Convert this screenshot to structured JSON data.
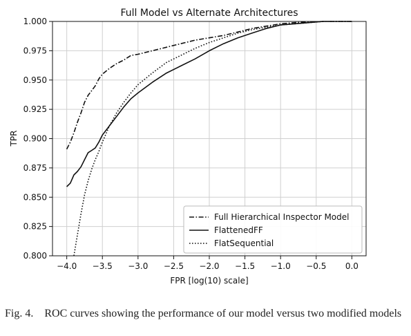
{
  "chart_data": {
    "type": "line",
    "title": "Full Model vs Alternate Architectures",
    "xlabel": "FPR [log(10) scale]",
    "ylabel": "TPR",
    "xlim": [
      -4.2,
      0.2
    ],
    "ylim": [
      0.8,
      1.0
    ],
    "x_ticks": [
      -4.0,
      -3.5,
      -3.0,
      -2.5,
      -2.0,
      -1.5,
      -1.0,
      -0.5,
      0.0
    ],
    "x_tick_labels": [
      "−4.0",
      "−3.5",
      "−3.0",
      "−2.5",
      "−2.0",
      "−1.5",
      "−1.0",
      "−0.5",
      "0.0"
    ],
    "y_ticks": [
      0.8,
      0.825,
      0.85,
      0.875,
      0.9,
      0.925,
      0.95,
      0.975,
      1.0
    ],
    "y_tick_labels": [
      "0.800",
      "0.825",
      "0.850",
      "0.875",
      "0.900",
      "0.925",
      "0.950",
      "0.975",
      "1.000"
    ],
    "grid": true,
    "legend_position": "lower-right",
    "series": [
      {
        "name": "Full Hierarchical Inspector Model",
        "style": "dashdot",
        "x": [
          -4.0,
          -3.95,
          -3.9,
          -3.85,
          -3.8,
          -3.75,
          -3.7,
          -3.65,
          -3.6,
          -3.55,
          -3.5,
          -3.4,
          -3.3,
          -3.2,
          -3.1,
          -3.0,
          -2.8,
          -2.6,
          -2.4,
          -2.2,
          -2.0,
          -1.8,
          -1.6,
          -1.4,
          -1.2,
          -1.0,
          -0.8,
          -0.6,
          -0.4,
          -0.2,
          0.0
        ],
        "y": [
          0.891,
          0.897,
          0.905,
          0.914,
          0.922,
          0.931,
          0.937,
          0.941,
          0.945,
          0.951,
          0.955,
          0.96,
          0.964,
          0.967,
          0.971,
          0.972,
          0.975,
          0.978,
          0.981,
          0.984,
          0.986,
          0.988,
          0.991,
          0.994,
          0.996,
          0.998,
          0.999,
          0.9995,
          1.0,
          1.0,
          1.0
        ]
      },
      {
        "name": "FlattenedFF",
        "style": "solid",
        "x": [
          -4.0,
          -3.95,
          -3.9,
          -3.85,
          -3.8,
          -3.75,
          -3.7,
          -3.65,
          -3.6,
          -3.55,
          -3.5,
          -3.4,
          -3.3,
          -3.2,
          -3.1,
          -3.0,
          -2.8,
          -2.6,
          -2.4,
          -2.2,
          -2.0,
          -1.8,
          -1.6,
          -1.4,
          -1.2,
          -1.0,
          -0.8,
          -0.6,
          -0.4,
          -0.2,
          0.0
        ],
        "y": [
          0.859,
          0.862,
          0.869,
          0.872,
          0.876,
          0.882,
          0.888,
          0.89,
          0.892,
          0.897,
          0.903,
          0.911,
          0.919,
          0.927,
          0.934,
          0.939,
          0.948,
          0.956,
          0.962,
          0.968,
          0.975,
          0.981,
          0.986,
          0.99,
          0.994,
          0.997,
          0.998,
          0.999,
          1.0,
          1.0,
          1.0
        ]
      },
      {
        "name": "FlatSequential",
        "style": "dotted",
        "x": [
          -3.9,
          -3.85,
          -3.8,
          -3.75,
          -3.7,
          -3.65,
          -3.6,
          -3.55,
          -3.5,
          -3.4,
          -3.3,
          -3.2,
          -3.1,
          -3.0,
          -2.8,
          -2.6,
          -2.4,
          -2.2,
          -2.0,
          -1.8,
          -1.6,
          -1.4,
          -1.2,
          -1.0,
          -0.8,
          -0.6,
          -0.4,
          -0.2,
          0.0
        ],
        "y": [
          0.8,
          0.818,
          0.836,
          0.852,
          0.864,
          0.874,
          0.882,
          0.889,
          0.897,
          0.911,
          0.922,
          0.931,
          0.939,
          0.946,
          0.956,
          0.965,
          0.971,
          0.977,
          0.982,
          0.986,
          0.99,
          0.993,
          0.995,
          0.997,
          0.998,
          0.999,
          1.0,
          1.0,
          1.0
        ]
      }
    ]
  },
  "caption": {
    "label": "Fig. 4.",
    "text": "ROC curves showing the performance of our model versus two modified models"
  }
}
